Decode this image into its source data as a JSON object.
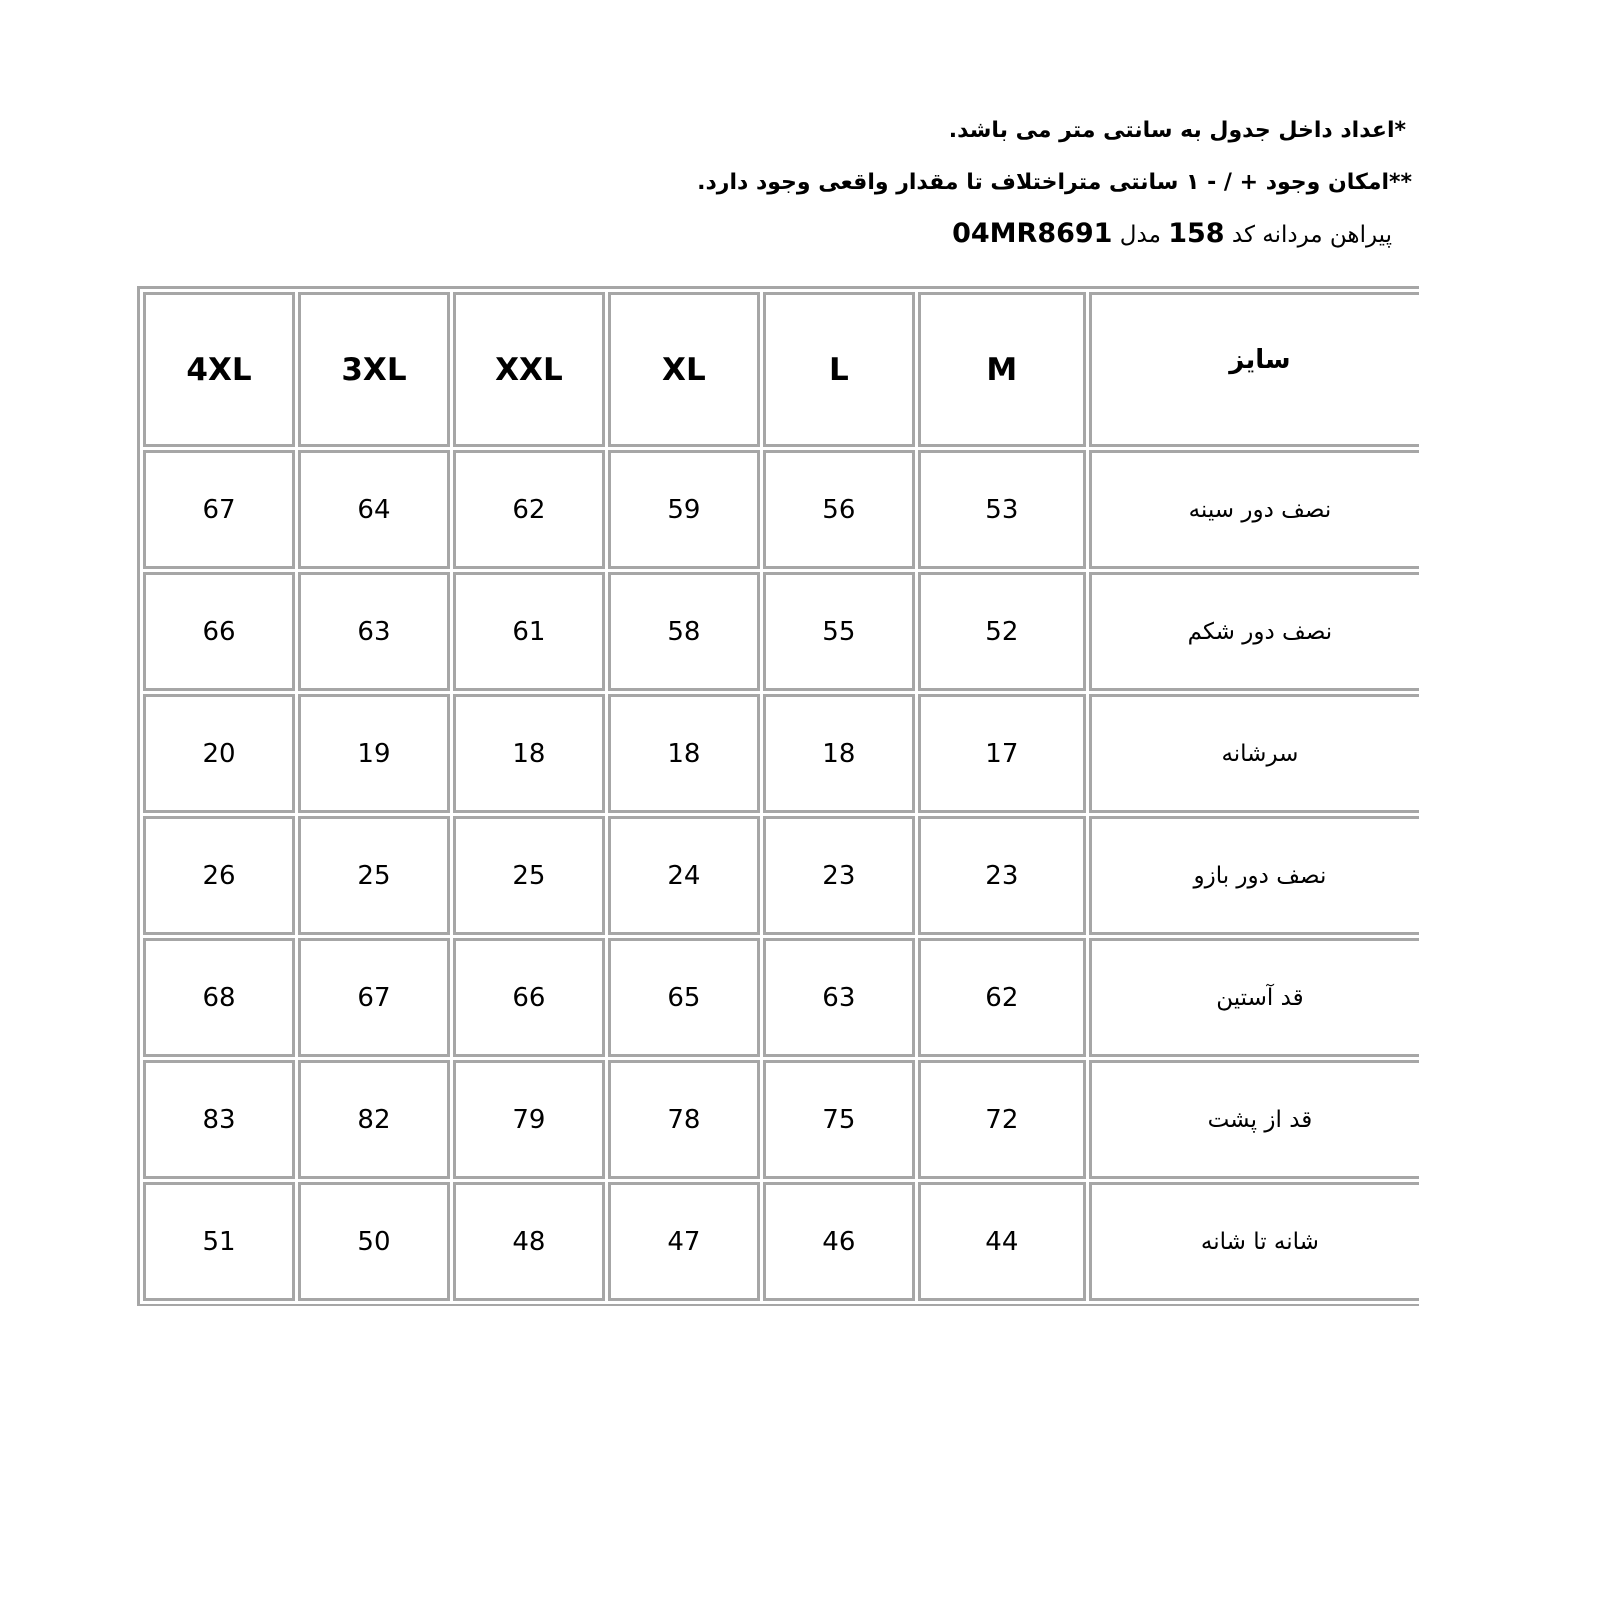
{
  "notes": {
    "line1": "*اعداد داخل جدول به سانتی متر می باشد.",
    "line2": "**امکان وجود + / - ۱ سانتی متراختلاف تا مقدار واقعی وجود دارد.",
    "title_prefix": "پیراهن مردانه  کد",
    "code": "158",
    "model_word": "مدل",
    "model": "04MR8691"
  },
  "table": {
    "header_label": "سایز",
    "sizes": [
      "M",
      "L",
      "XL",
      "XXL",
      "3XL",
      "4XL"
    ],
    "rows": [
      {
        "label": "نصف دور سینه",
        "values": [
          "53",
          "56",
          "59",
          "62",
          "64",
          "67"
        ]
      },
      {
        "label": "نصف دور شکم",
        "values": [
          "52",
          "55",
          "58",
          "61",
          "63",
          "66"
        ]
      },
      {
        "label": "سرشانه",
        "values": [
          "17",
          "18",
          "18",
          "18",
          "19",
          "20"
        ]
      },
      {
        "label": "نصف دور بازو",
        "values": [
          "23",
          "23",
          "24",
          "25",
          "25",
          "26"
        ]
      },
      {
        "label": "قد آستین",
        "values": [
          "62",
          "63",
          "65",
          "66",
          "67",
          "68"
        ]
      },
      {
        "label": "قد از پشت",
        "values": [
          "72",
          "75",
          "78",
          "79",
          "82",
          "83"
        ]
      },
      {
        "label": "شانه تا شانه",
        "values": [
          "44",
          "46",
          "47",
          "48",
          "50",
          "51"
        ]
      }
    ]
  }
}
